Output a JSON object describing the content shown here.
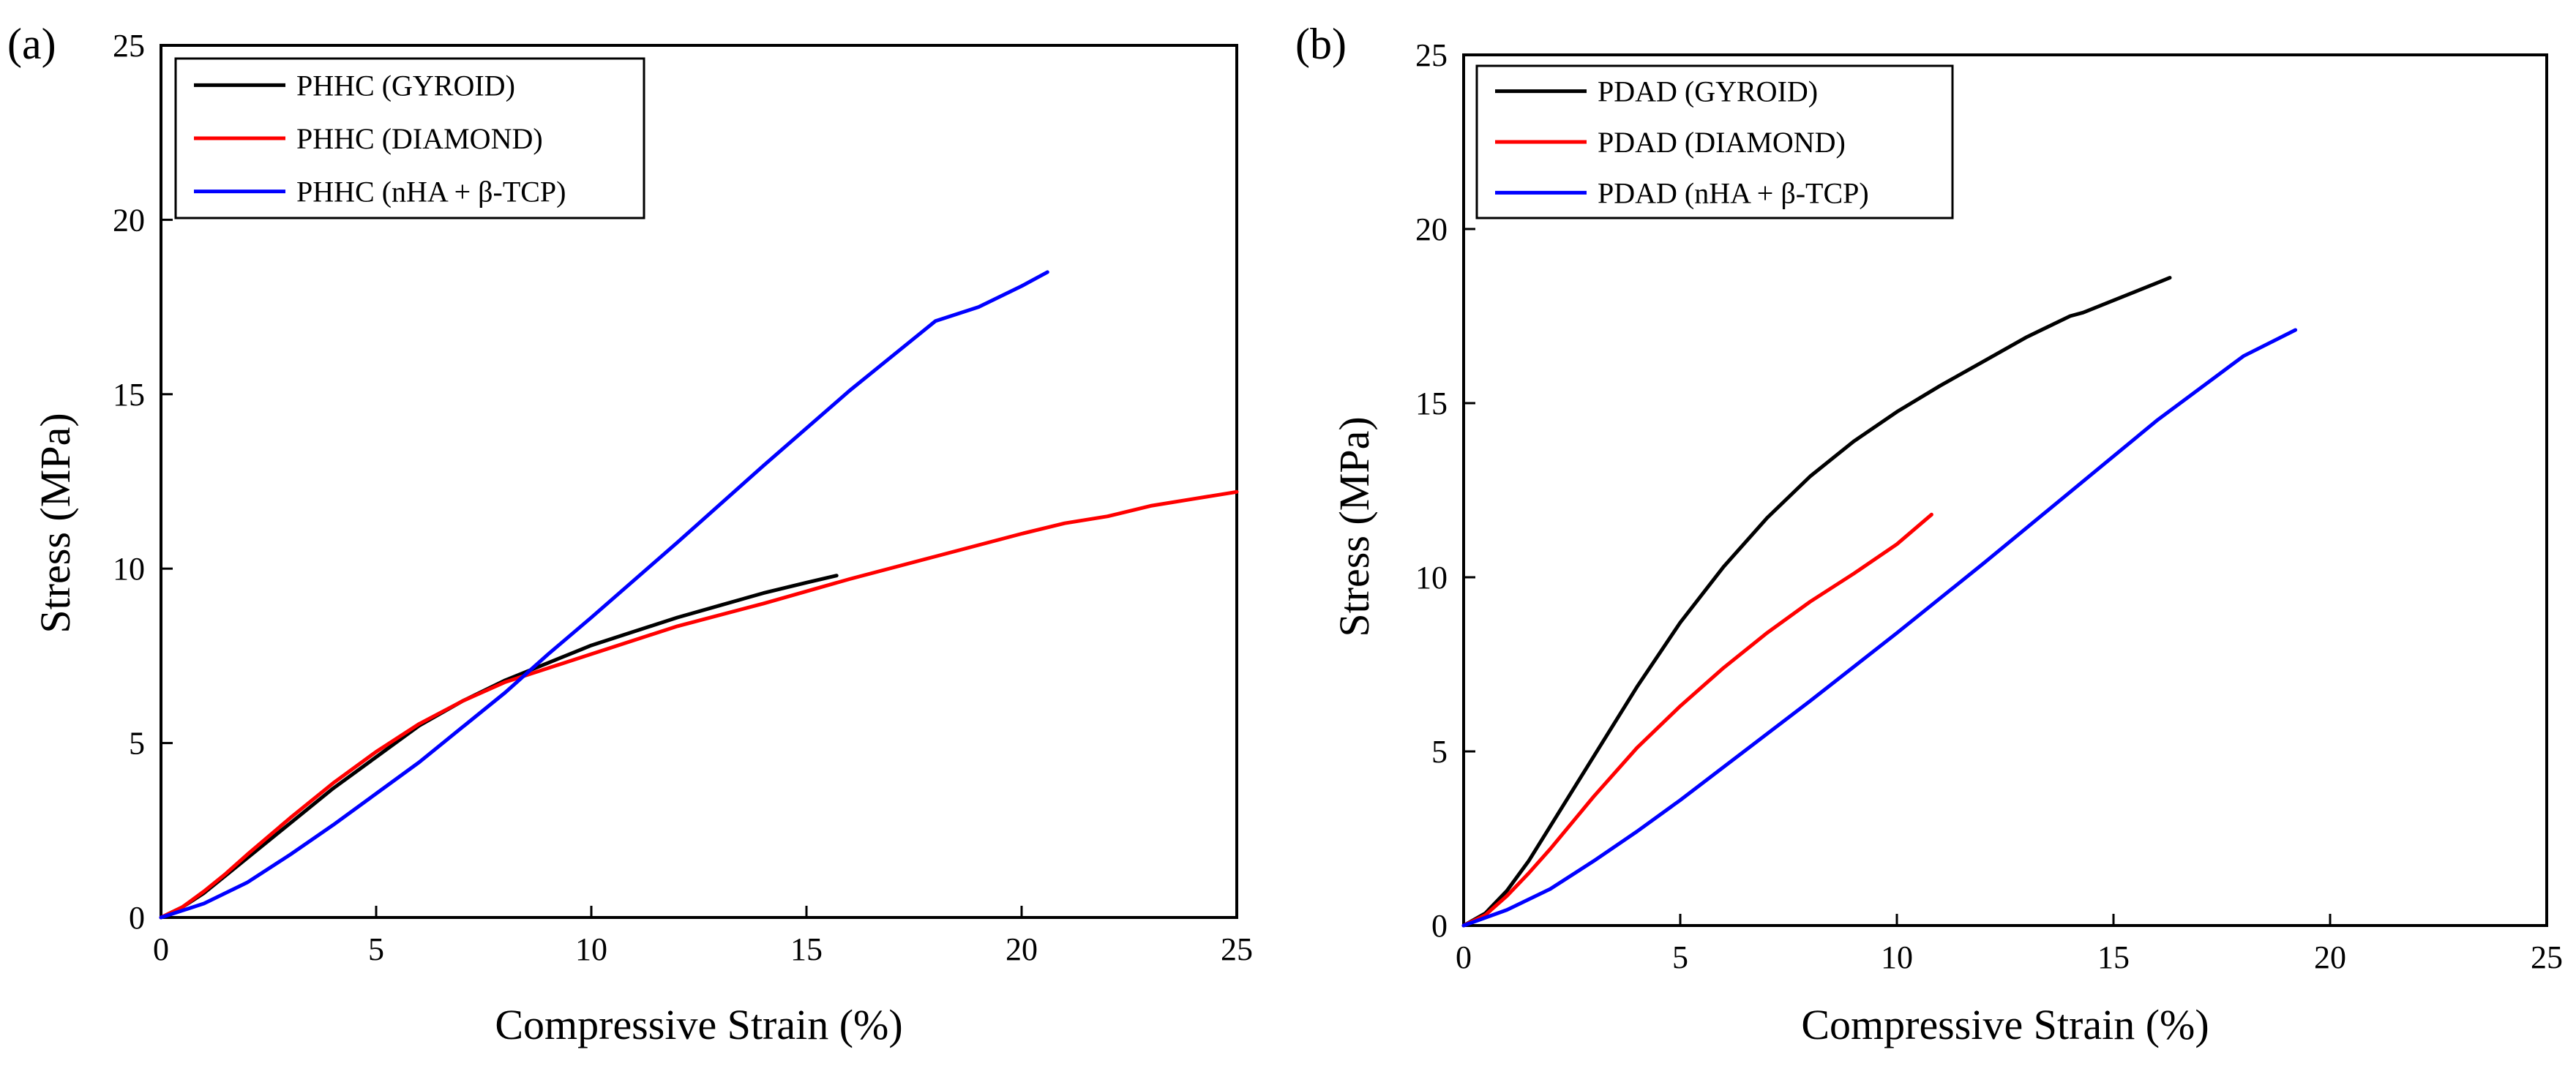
{
  "chart_data": [
    {
      "type": "line",
      "panel_label": "(a)",
      "title": "",
      "xlabel": "Compressive Strain (%)",
      "ylabel": "Stress (MPa)",
      "xlim": [
        0,
        25
      ],
      "ylim": [
        0,
        25
      ],
      "xticks": [
        0,
        5,
        10,
        15,
        20,
        25
      ],
      "yticks": [
        0,
        5,
        10,
        15,
        20,
        25
      ],
      "legend_position": "top-left",
      "grid": false,
      "series": [
        {
          "name": "PHHC (GYROID)",
          "color": "#000000",
          "x": [
            0,
            0.5,
            1,
            1.5,
            2,
            3,
            4,
            5,
            6,
            7,
            8,
            9,
            10,
            11,
            12,
            13,
            14,
            15,
            15.7
          ],
          "y": [
            0,
            0.3,
            0.7,
            1.2,
            1.7,
            2.7,
            3.7,
            4.6,
            5.5,
            6.2,
            6.8,
            7.3,
            7.8,
            8.2,
            8.6,
            8.95,
            9.3,
            9.6,
            9.8
          ]
        },
        {
          "name": "PHHC (DIAMOND)",
          "color": "#ff0000",
          "x": [
            0,
            0.5,
            1,
            1.5,
            2,
            3,
            4,
            5,
            6,
            7,
            8,
            9,
            10,
            12,
            14,
            16,
            18,
            20,
            21,
            22,
            23,
            24,
            25
          ],
          "y": [
            0,
            0.3,
            0.75,
            1.25,
            1.8,
            2.85,
            3.85,
            4.75,
            5.55,
            6.2,
            6.75,
            7.15,
            7.55,
            8.35,
            9.0,
            9.7,
            10.35,
            11.0,
            11.3,
            11.5,
            11.8,
            12.0,
            12.2
          ]
        },
        {
          "name": "PHHC (nHA + β-TCP)",
          "color": "#0000ff",
          "x": [
            0,
            1,
            2,
            3,
            4,
            5,
            6,
            7,
            8,
            9,
            10,
            12,
            14,
            16,
            18,
            19,
            20,
            20.6
          ],
          "y": [
            0,
            0.4,
            1.0,
            1.8,
            2.65,
            3.55,
            4.45,
            5.45,
            6.45,
            7.55,
            8.6,
            10.75,
            12.95,
            15.1,
            17.1,
            17.5,
            18.1,
            18.5
          ]
        }
      ]
    },
    {
      "type": "line",
      "panel_label": "(b)",
      "title": "",
      "xlabel": "Compressive Strain (%)",
      "ylabel": "Stress (MPa)",
      "xlim": [
        0,
        25
      ],
      "ylim": [
        0,
        25
      ],
      "xticks": [
        0,
        5,
        10,
        15,
        20,
        25
      ],
      "yticks": [
        0,
        5,
        10,
        15,
        20,
        25
      ],
      "legend_position": "top-left",
      "grid": false,
      "series": [
        {
          "name": "PDAD (GYROID)",
          "color": "#000000",
          "x": [
            0,
            0.5,
            1,
            1.5,
            2,
            3,
            4,
            5,
            6,
            7,
            8,
            9,
            10,
            11,
            12,
            13,
            14,
            14.3,
            15,
            16,
            16.3
          ],
          "y": [
            0,
            0.35,
            1.0,
            1.85,
            2.85,
            4.85,
            6.85,
            8.7,
            10.3,
            11.7,
            12.9,
            13.9,
            14.75,
            15.5,
            16.2,
            16.9,
            17.5,
            17.6,
            17.95,
            18.45,
            18.6
          ]
        },
        {
          "name": "PDAD (DIAMOND)",
          "color": "#ff0000",
          "x": [
            0,
            0.5,
            1,
            1.5,
            2,
            3,
            4,
            5,
            6,
            7,
            8,
            9,
            10,
            10.8
          ],
          "y": [
            0,
            0.3,
            0.85,
            1.5,
            2.2,
            3.7,
            5.1,
            6.3,
            7.4,
            8.4,
            9.3,
            10.1,
            10.95,
            11.8
          ]
        },
        {
          "name": "PDAD (nHA + β-TCP)",
          "color": "#0000ff",
          "x": [
            0,
            1,
            2,
            3,
            4,
            5,
            6,
            8,
            10,
            12,
            14,
            16,
            18,
            19.2
          ],
          "y": [
            0,
            0.45,
            1.05,
            1.85,
            2.7,
            3.6,
            4.55,
            6.45,
            8.4,
            10.4,
            12.45,
            14.5,
            16.35,
            17.1
          ]
        }
      ]
    }
  ]
}
